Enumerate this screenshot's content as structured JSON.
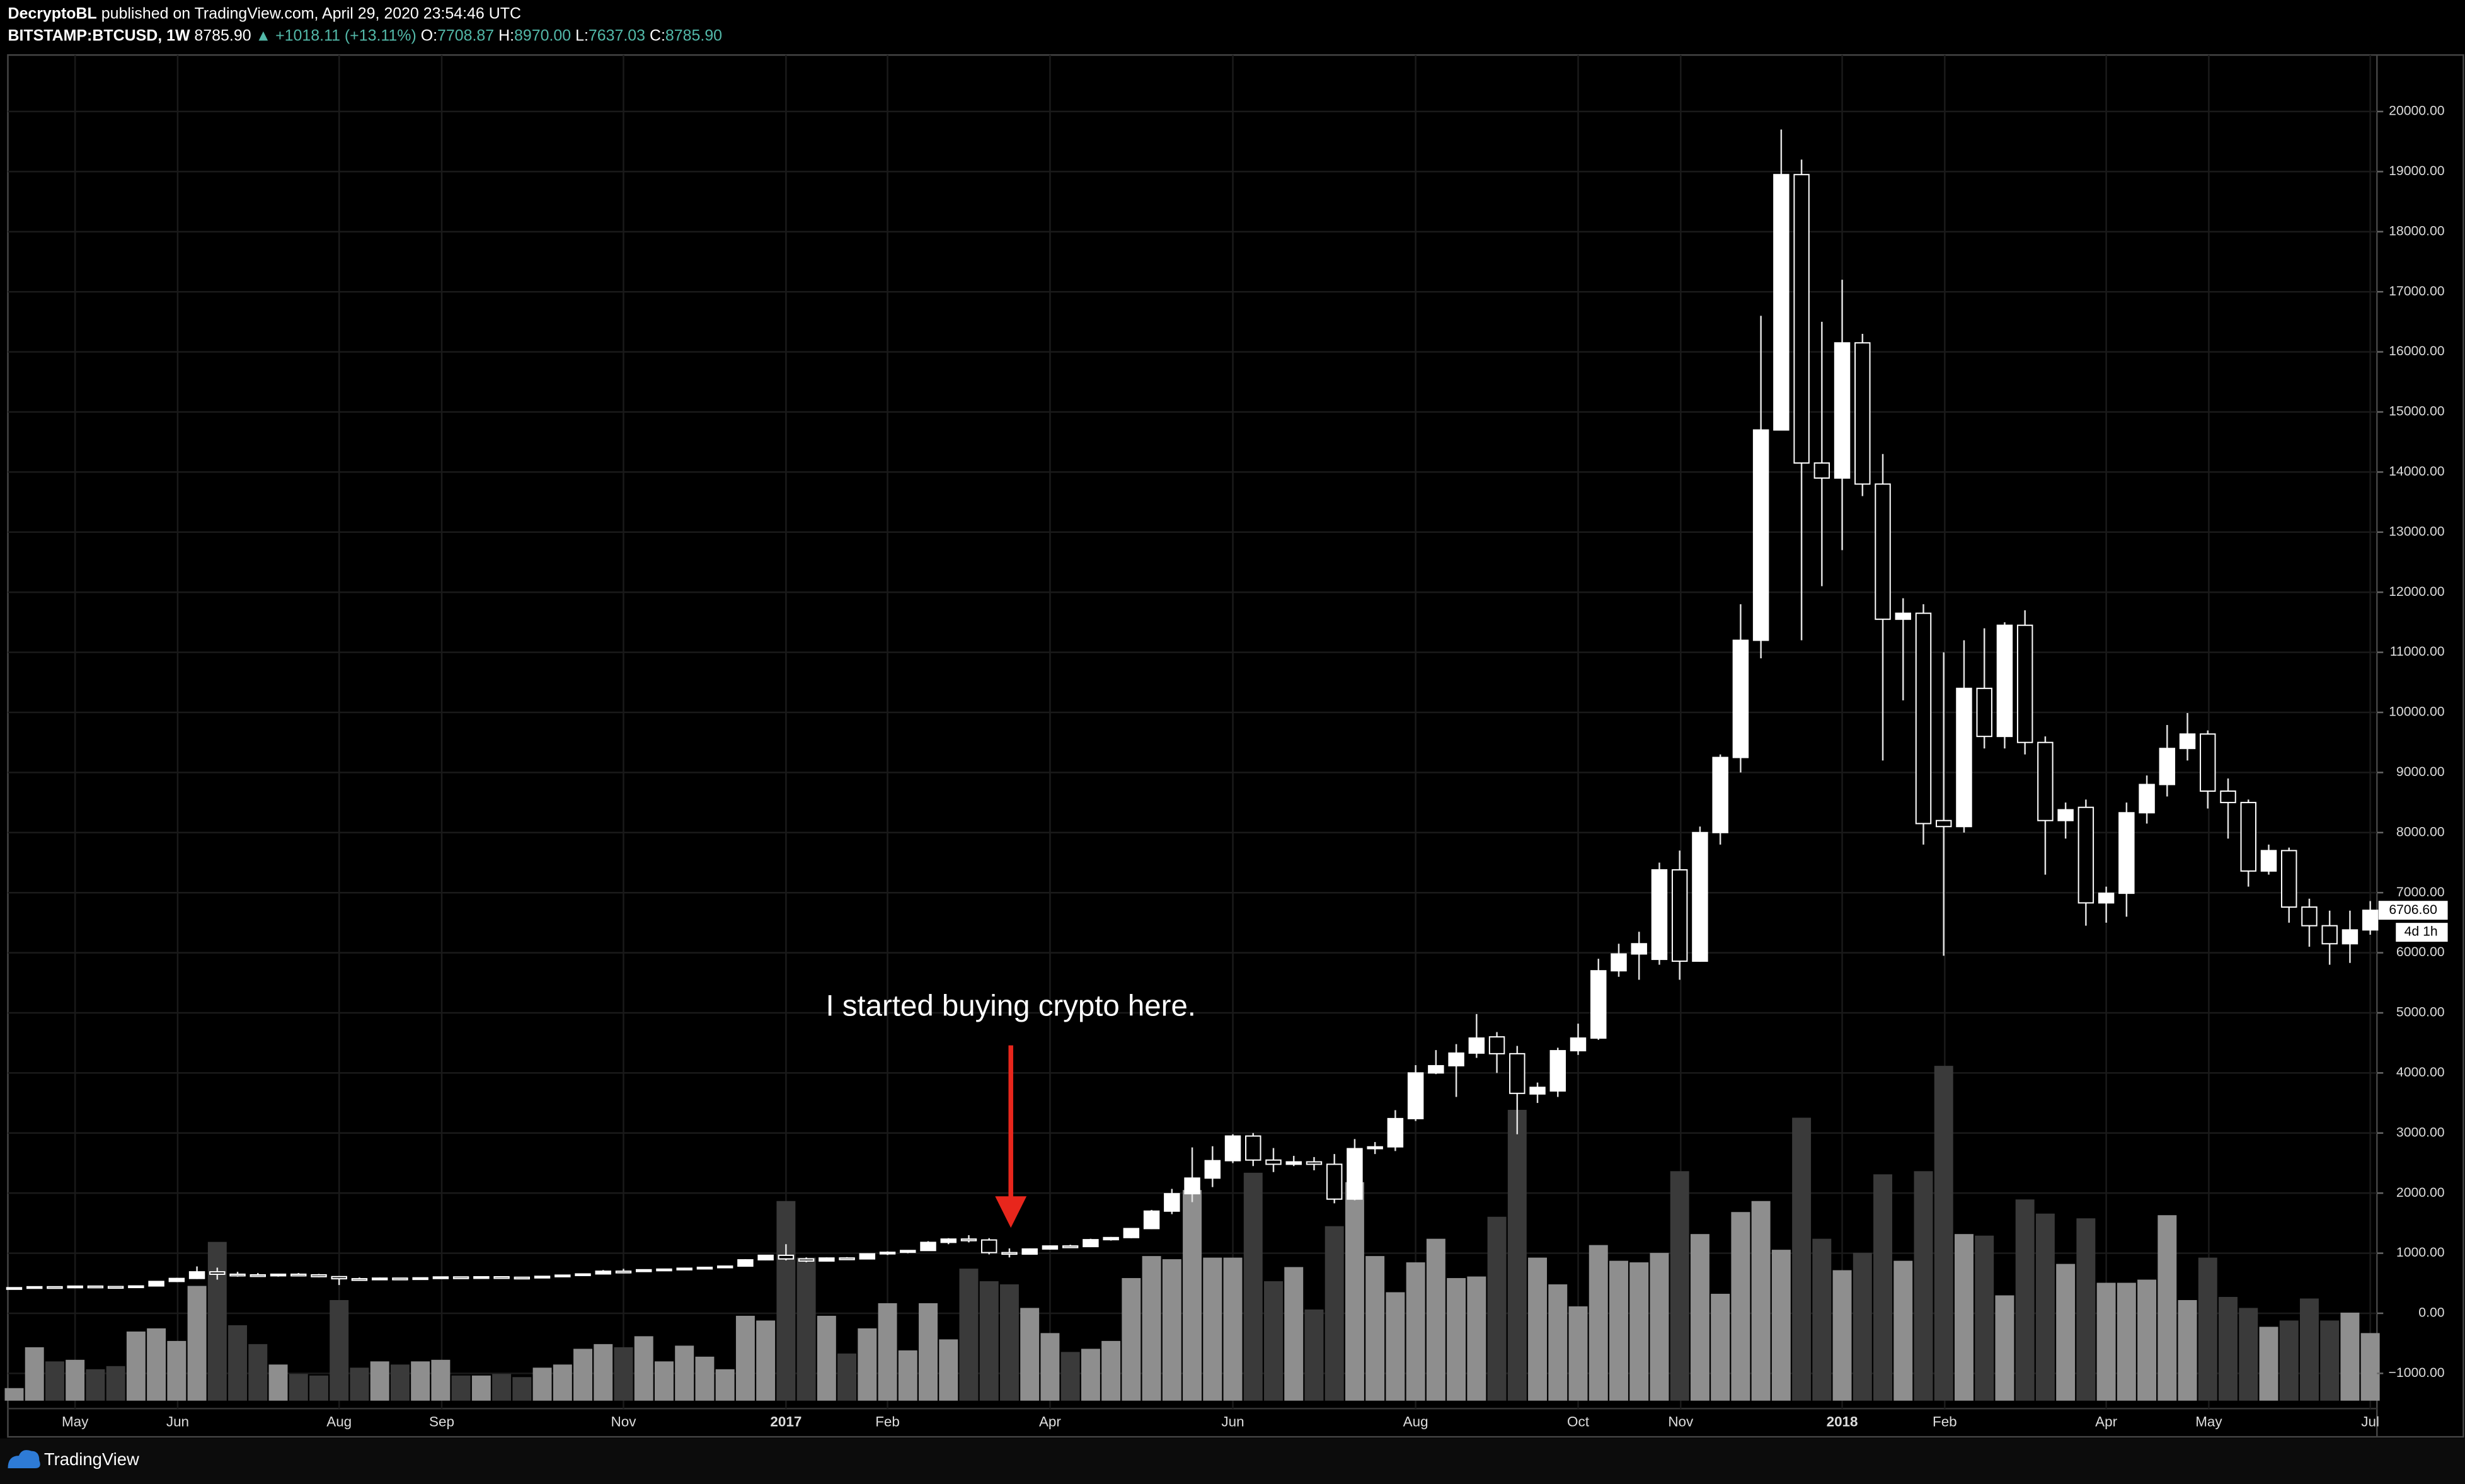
{
  "header": {
    "author": "DecryptoBL",
    "published": "published on TradingView.com, April 29, 2020 23:54:46 UTC",
    "symbol": "BITSTAMP:BTCUSD, 1W",
    "last": "8785.90",
    "change": "▲ +1018.11 (+13.11%)",
    "ohlc": [
      {
        "key": "O:",
        "value": "7708.87"
      },
      {
        "key": "H:",
        "value": "8970.00"
      },
      {
        "key": "L:",
        "value": "7637.03"
      },
      {
        "key": "C:",
        "value": "8785.90"
      }
    ]
  },
  "footer": {
    "brand": "TradingView"
  },
  "chart_data": {
    "type": "candlestick",
    "annotation": "I started buying crypto here.",
    "open": [
      417,
      426,
      442,
      436,
      452,
      445,
      440,
      455,
      530,
      580,
      690,
      650,
      640,
      625,
      650,
      640,
      610,
      575,
      565,
      585,
      575,
      590,
      605,
      600,
      608,
      600,
      598,
      615,
      635,
      655,
      700,
      695,
      725,
      735,
      750,
      765,
      785,
      890,
      965,
      905,
      870,
      920,
      905,
      990,
      1015,
      1045,
      1180,
      1235,
      1220,
      1010,
      985,
      1070,
      1120,
      1110,
      1225,
      1260,
      1410,
      1700,
      1990,
      2250,
      2540,
      2950,
      2550,
      2480,
      2520,
      2480,
      1900,
      2740,
      2770,
      3240,
      4000,
      4120,
      4330,
      4600,
      4320,
      3650,
      3700,
      4370,
      4580,
      5700,
      5980,
      5890,
      7380,
      5860,
      8000,
      9250,
      11200,
      14700,
      18950,
      14150,
      13900,
      16150,
      13800,
      11550,
      11650,
      8200,
      8100,
      10400,
      9600,
      11450,
      9500,
      8200,
      8420,
      6830,
      6990,
      8330,
      8800,
      9400,
      9640,
      8690,
      8500,
      7360,
      7700,
      6760,
      6450,
      6150,
      6380
    ],
    "high": [
      430,
      445,
      447,
      455,
      458,
      450,
      460,
      535,
      590,
      780,
      760,
      690,
      670,
      660,
      670,
      655,
      620,
      595,
      595,
      590,
      595,
      610,
      612,
      612,
      612,
      608,
      620,
      640,
      660,
      720,
      740,
      730,
      740,
      760,
      770,
      790,
      900,
      970,
      1150,
      930,
      930,
      935,
      1000,
      1030,
      1050,
      1200,
      1250,
      1300,
      1250,
      1080,
      1080,
      1130,
      1140,
      1240,
      1270,
      1420,
      1720,
      2070,
      2760,
      2780,
      2980,
      3000,
      2750,
      2620,
      2600,
      2650,
      2900,
      2850,
      3380,
      4130,
      4380,
      4480,
      4980,
      4680,
      4450,
      3840,
      4420,
      4820,
      5900,
      6150,
      6350,
      7500,
      7700,
      8100,
      9300,
      11800,
      16600,
      19700,
      19200,
      16500,
      17200,
      16300,
      14300,
      11900,
      11800,
      11000,
      11200,
      11400,
      11500,
      11700,
      9600,
      8500,
      8550,
      7100,
      8500,
      8950,
      9790,
      9990,
      9700,
      8900,
      8550,
      7800,
      7750,
      6900,
      6700,
      6700,
      6860
    ],
    "low": [
      410,
      420,
      430,
      432,
      440,
      438,
      438,
      450,
      520,
      570,
      560,
      610,
      620,
      610,
      630,
      600,
      470,
      560,
      560,
      565,
      570,
      585,
      595,
      595,
      595,
      594,
      595,
      612,
      630,
      650,
      680,
      690,
      715,
      725,
      740,
      760,
      780,
      880,
      880,
      850,
      860,
      895,
      900,
      970,
      1000,
      1040,
      1150,
      1180,
      980,
      930,
      980,
      1060,
      1100,
      1100,
      1210,
      1250,
      1400,
      1650,
      1850,
      2100,
      2500,
      2450,
      2350,
      2450,
      2380,
      1830,
      1880,
      2650,
      2700,
      3200,
      3980,
      3600,
      4250,
      4000,
      2980,
      3500,
      3600,
      4300,
      4550,
      5600,
      5550,
      5800,
      5550,
      5850,
      7800,
      9000,
      10900,
      14700,
      11200,
      12100,
      12700,
      13600,
      9200,
      10200,
      7800,
      5950,
      8000,
      9400,
      9400,
      9300,
      7300,
      7900,
      6450,
      6500,
      6600,
      8150,
      8600,
      9200,
      8400,
      7900,
      7100,
      7300,
      6500,
      6100,
      5800,
      5830,
      6300
    ],
    "close": [
      426,
      442,
      436,
      452,
      445,
      440,
      455,
      530,
      580,
      690,
      650,
      640,
      625,
      650,
      640,
      610,
      575,
      565,
      585,
      575,
      590,
      605,
      600,
      608,
      600,
      598,
      615,
      635,
      655,
      700,
      695,
      725,
      735,
      750,
      765,
      785,
      890,
      965,
      905,
      870,
      920,
      905,
      990,
      1015,
      1045,
      1180,
      1235,
      1220,
      1010,
      985,
      1070,
      1120,
      1110,
      1225,
      1260,
      1410,
      1700,
      1990,
      2250,
      2540,
      2950,
      2550,
      2480,
      2520,
      2480,
      1900,
      2740,
      2770,
      3240,
      4000,
      4120,
      4330,
      4580,
      4320,
      3660,
      3760,
      4370,
      4580,
      5700,
      5980,
      6150,
      7380,
      5860,
      8000,
      9250,
      11200,
      14700,
      18950,
      14150,
      13900,
      16150,
      13800,
      11550,
      11650,
      8150,
      8100,
      10400,
      9600,
      11450,
      9500,
      8200,
      8380,
      6830,
      6990,
      8330,
      8800,
      9400,
      9640,
      8690,
      8500,
      7360,
      7700,
      6760,
      6450,
      6150,
      6380,
      6706.6
    ],
    "volume": [
      8,
      34,
      25,
      26,
      20,
      22,
      44,
      46,
      38,
      73,
      101,
      48,
      36,
      23,
      17,
      16,
      64,
      21,
      25,
      23,
      25,
      26,
      16,
      16,
      17,
      15,
      21,
      23,
      33,
      36,
      34,
      41,
      25,
      35,
      28,
      20,
      54,
      51,
      127,
      91,
      54,
      30,
      46,
      62,
      32,
      62,
      39,
      84,
      76,
      74,
      59,
      43,
      31,
      33,
      38,
      78,
      92,
      90,
      134,
      91,
      91,
      145,
      76,
      85,
      58,
      111,
      139,
      92,
      69,
      88,
      103,
      78,
      79,
      117,
      185,
      91,
      74,
      60,
      99,
      89,
      88,
      94,
      146,
      106,
      68,
      120,
      127,
      96,
      180,
      103,
      83,
      94,
      144,
      89,
      146,
      213,
      106,
      105,
      67,
      128,
      119,
      87,
      116,
      75,
      75,
      77,
      118,
      64,
      91,
      66,
      59,
      47,
      51,
      65,
      51,
      56,
      43
    ],
    "last_price": {
      "value": 6706.6,
      "label": "6706.60"
    },
    "countdown": "4d 1h",
    "colors": {
      "up": "#ffffff",
      "down": "#000000",
      "wick": "#e0e0e0",
      "volume_up": "#8e8e8e",
      "volume_down": "#3a3a3a",
      "arrow": "#e8261c"
    },
    "grid": true,
    "xlim": [
      -0.31,
      116.33
    ],
    "xticks": [
      {
        "value": 3,
        "label": "May"
      },
      {
        "value": 8.05,
        "label": "Jun"
      },
      {
        "value": 16,
        "label": "Aug"
      },
      {
        "value": 21.05,
        "label": "Sep"
      },
      {
        "value": 30,
        "label": "Nov"
      },
      {
        "value": 38,
        "label": "2017"
      },
      {
        "value": 43,
        "label": "Feb"
      },
      {
        "value": 51,
        "label": "Apr"
      },
      {
        "value": 60,
        "label": "Jun"
      },
      {
        "value": 69,
        "label": "Aug"
      },
      {
        "value": 77,
        "label": "Oct"
      },
      {
        "value": 82.05,
        "label": "Nov"
      },
      {
        "value": 90,
        "label": "2018"
      },
      {
        "value": 95.05,
        "label": "Feb"
      },
      {
        "value": 103,
        "label": "Apr"
      },
      {
        "value": 108.05,
        "label": "May"
      },
      {
        "value": 116,
        "label": "Jul"
      }
    ],
    "ylim": [
      -2030,
      20940
    ],
    "yticks": [
      {
        "value": -1000,
        "label": "−1000.00"
      },
      {
        "value": 0,
        "label": "0.00"
      },
      {
        "value": 1000,
        "label": "1000.00"
      },
      {
        "value": 2000,
        "label": "2000.00"
      },
      {
        "value": 3000,
        "label": "3000.00"
      },
      {
        "value": 4000,
        "label": "4000.00"
      },
      {
        "value": 5000,
        "label": "5000.00"
      },
      {
        "value": 6000,
        "label": "6000.00"
      },
      {
        "value": 7000,
        "label": "7000.00"
      },
      {
        "value": 8000,
        "label": "8000.00"
      },
      {
        "value": 9000,
        "label": "9000.00"
      },
      {
        "value": 10000,
        "label": "10000.00"
      },
      {
        "value": 11000,
        "label": "11000.00"
      },
      {
        "value": 12000,
        "label": "12000.00"
      },
      {
        "value": 13000,
        "label": "13000.00"
      },
      {
        "value": 14000,
        "label": "14000.00"
      },
      {
        "value": 15000,
        "label": "15000.00"
      },
      {
        "value": 16000,
        "label": "16000.00"
      },
      {
        "value": 17000,
        "label": "17000.00"
      },
      {
        "value": 18000,
        "label": "18000.00"
      },
      {
        "value": 19000,
        "label": "19000.00"
      },
      {
        "value": 20000,
        "label": "20000.00"
      }
    ]
  }
}
